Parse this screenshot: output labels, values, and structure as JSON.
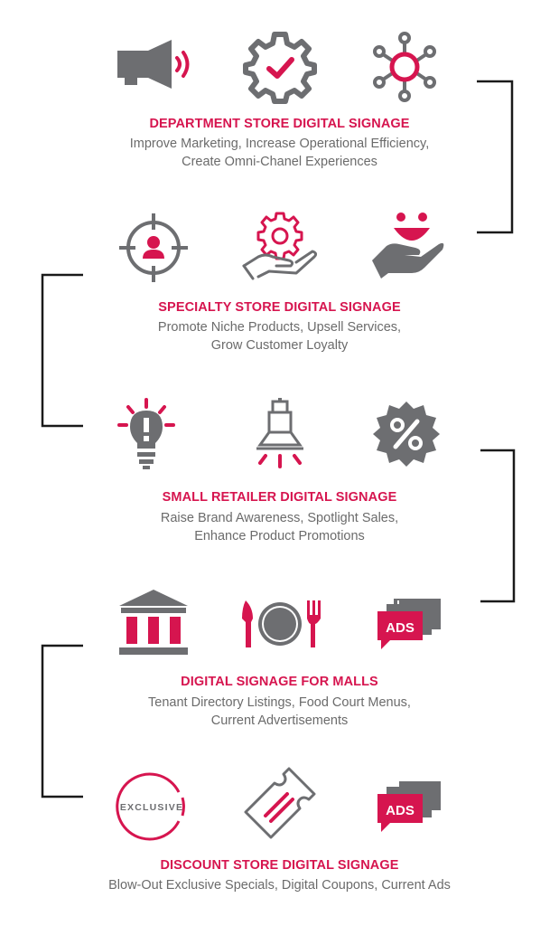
{
  "sections": [
    {
      "title": "DEPARTMENT STORE DIGITAL SIGNAGE",
      "desc_line1": "Improve Marketing, Increase Operational Efficiency,",
      "desc_line2": "Create Omni-Chanel Experiences",
      "icons": [
        "megaphone-icon",
        "gear-check-icon",
        "network-hub-icon"
      ]
    },
    {
      "title": "SPECIALTY STORE DIGITAL SIGNAGE",
      "desc_line1": "Promote Niche Products, Upsell Services,",
      "desc_line2": "Grow Customer Loyalty",
      "icons": [
        "target-person-icon",
        "hand-gear-icon",
        "hand-smile-icon"
      ]
    },
    {
      "title": "SMALL RETAILER DIGITAL SIGNAGE",
      "desc_line1": "Raise Brand Awareness, Spotlight Sales,",
      "desc_line2": "Enhance Product Promotions",
      "icons": [
        "lightbulb-idea-icon",
        "spotlight-icon",
        "percent-badge-icon"
      ]
    },
    {
      "title": "DIGITAL SIGNAGE FOR MALLS",
      "desc_line1": "Tenant Directory Listings, Food Court Menus,",
      "desc_line2": "Current Advertisements",
      "icons": [
        "building-icon",
        "plate-cutlery-icon",
        "ads-icon"
      ]
    },
    {
      "title": "DISCOUNT STORE DIGITAL SIGNAGE",
      "desc_line1": "Blow-Out Exclusive Specials, Digital Coupons, Current Ads",
      "icons": [
        "exclusive-badge-icon",
        "coupon-ticket-icon",
        "ads-icon"
      ]
    }
  ],
  "badges": {
    "exclusive_text": "EXCLUSIVE",
    "ads_text": "ADS"
  },
  "colors": {
    "accent": "#d6154f",
    "icon_gray": "#6d6e71",
    "text_gray": "#6b6b6b",
    "bracket": "#1a1a1a"
  }
}
